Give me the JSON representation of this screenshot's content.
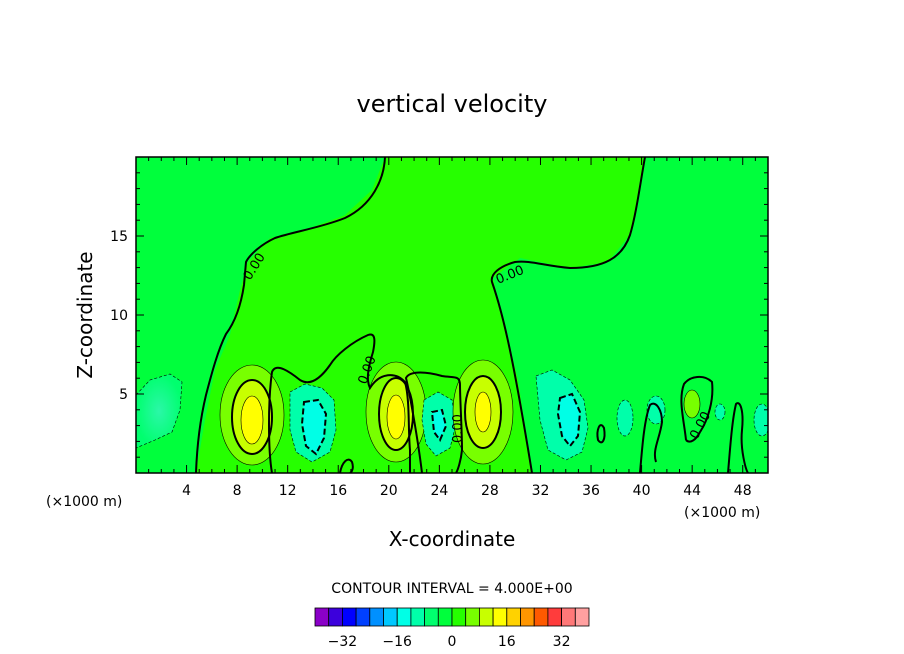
{
  "chart_data": {
    "type": "contour",
    "title": "vertical velocity",
    "xlabel": "X-coordinate",
    "ylabel": "Z-coordinate",
    "x_unit_left": "(×1000 m)",
    "x_unit_right": "(×1000 m)",
    "xlim": [
      0,
      50
    ],
    "ylim": [
      0,
      20
    ],
    "xticks": [
      4,
      8,
      12,
      16,
      20,
      24,
      28,
      32,
      36,
      40,
      44,
      48
    ],
    "yticks": [
      5,
      10,
      15
    ],
    "contour_interval_text": "CONTOUR INTERVAL = 4.000E+00",
    "contour_interval": 4,
    "zero_contour_label": "0.00",
    "colorbar": {
      "tick_labels": [
        "-32",
        "-16",
        "0",
        "16",
        "32"
      ],
      "tick_values": [
        -32,
        -16,
        0,
        16,
        32
      ],
      "colors": [
        "#8a00c8",
        "#3c00dc",
        "#0000ff",
        "#0040ff",
        "#0090ff",
        "#00c8ff",
        "#00ffe6",
        "#00ffaa",
        "#00ff6e",
        "#00ff3c",
        "#26ff00",
        "#78ff00",
        "#c8ff00",
        "#ffff00",
        "#ffd200",
        "#ff9600",
        "#ff5a00",
        "#ff3c3c",
        "#ff7878",
        "#ffa0a0"
      ]
    },
    "features": [
      {
        "type": "updraft",
        "x": 9.2,
        "z": 3.6,
        "max": 16
      },
      {
        "type": "updraft",
        "x": 20.6,
        "z": 3.8,
        "max": 16
      },
      {
        "type": "updraft",
        "x": 27.8,
        "z": 3.9,
        "max": 12
      },
      {
        "type": "downdraft",
        "x": 14.0,
        "z": 3.3,
        "min": -8
      },
      {
        "type": "downdraft",
        "x": 24.2,
        "z": 3.1,
        "min": -8
      },
      {
        "type": "downdraft",
        "x": 34.2,
        "z": 3.4,
        "min": -8
      },
      {
        "type": "downdraft",
        "x": 3.0,
        "z": 3.2,
        "min": -4
      }
    ]
  }
}
